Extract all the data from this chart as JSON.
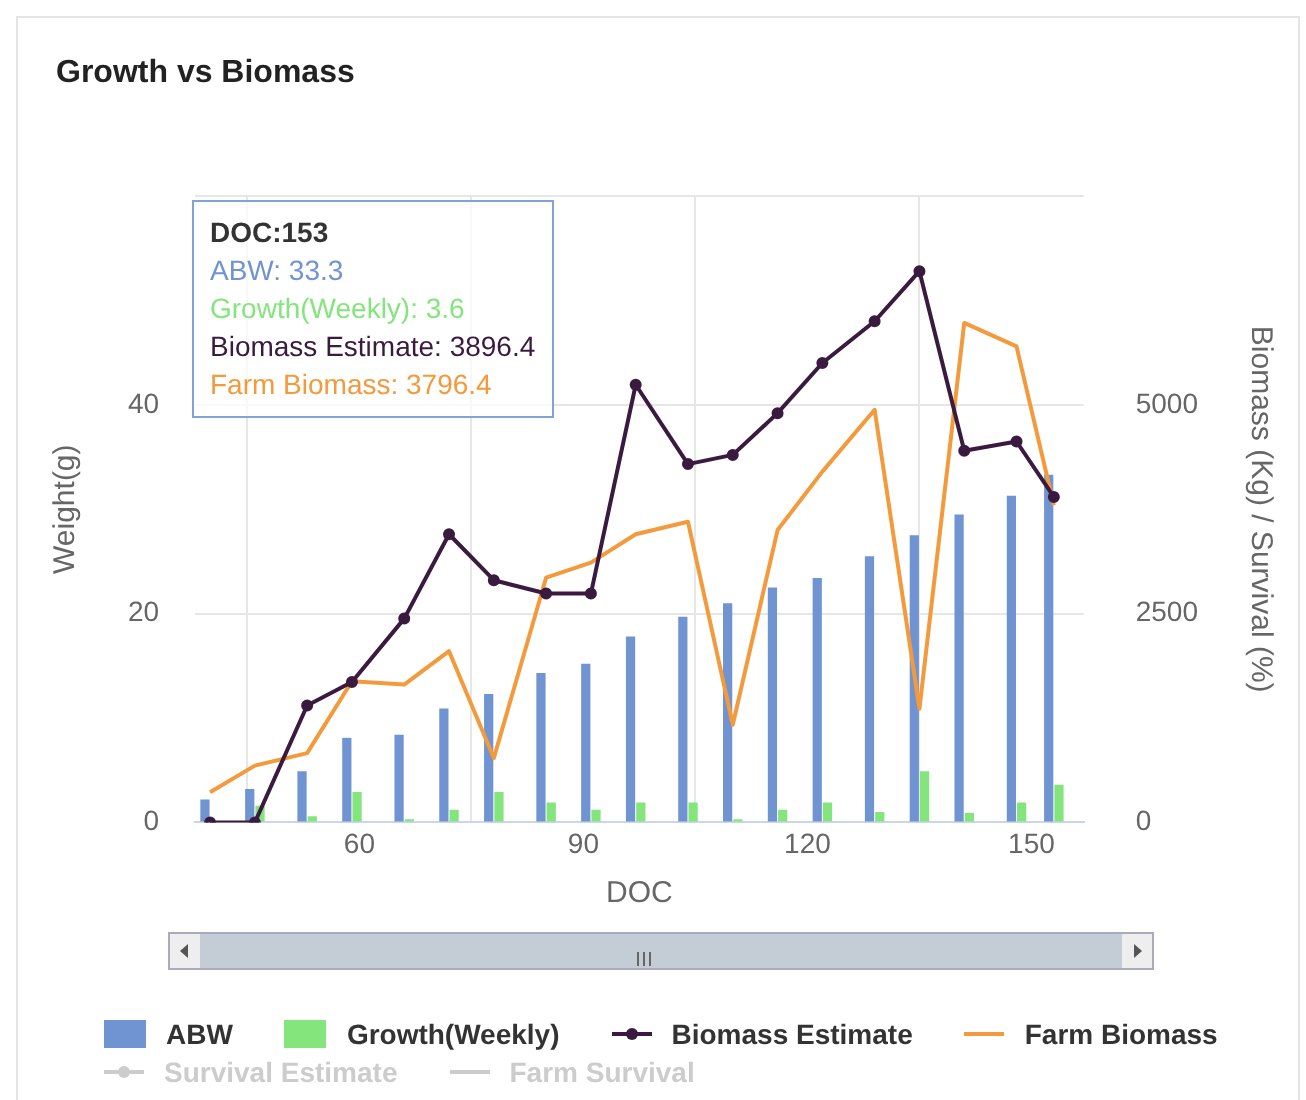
{
  "chart_data": {
    "type": "bar",
    "title": "Growth vs Biomass",
    "xlabel": "DOC",
    "ylabel": "Weight(g)",
    "y2label": "Biomass (Kg) / Survival (%)",
    "x": [
      40,
      46,
      53,
      59,
      66,
      72,
      78,
      85,
      91,
      97,
      104,
      110,
      116,
      122,
      129,
      135,
      141,
      148,
      153
    ],
    "series": [
      {
        "name": "ABW",
        "color": "#7094d2",
        "values": [
          2.2,
          3.2,
          4.9,
          8.1,
          8.4,
          10.9,
          12.3,
          14.3,
          15.2,
          17.8,
          19.7,
          21.0,
          22.5,
          23.4,
          25.5,
          27.5,
          29.5,
          31.3,
          33.3
        ]
      },
      {
        "name": "Growth(Weekly)",
        "color": "#84e57c",
        "values": [
          0,
          1.6,
          0.6,
          2.9,
          0.3,
          1.2,
          2.9,
          1.9,
          1.2,
          1.9,
          1.9,
          0.3,
          1.2,
          1.9,
          1.0,
          4.9,
          0.9,
          1.9,
          3.6
        ]
      },
      {
        "name": "Biomass Estimate",
        "type": "line",
        "axis": "y2",
        "marker": "circle",
        "color": "#3b1a3f",
        "values": [
          0,
          0,
          1400,
          1680,
          2440,
          3450,
          2900,
          2740,
          2740,
          5240,
          4290,
          4400,
          4900,
          5500,
          6000,
          6600,
          4450,
          4560,
          3896.4
        ]
      },
      {
        "name": "Farm Biomass",
        "type": "line",
        "axis": "y2",
        "marker": "none",
        "color": "#f39a3c",
        "values": [
          360,
          680,
          830,
          1690,
          1650,
          2050,
          770,
          2930,
          3110,
          3450,
          3600,
          1170,
          3500,
          4200,
          4940,
          1360,
          5980,
          5700,
          3796.4
        ]
      },
      {
        "name": "Survival Estimate",
        "type": "line",
        "axis": "y2",
        "marker": "circle",
        "color": "#cccccc",
        "values": [
          null,
          null,
          null,
          null,
          null,
          null,
          null,
          null,
          null,
          null,
          null,
          null,
          null,
          null,
          null,
          null,
          null,
          null,
          null
        ]
      },
      {
        "name": "Farm Survival",
        "type": "line",
        "axis": "y2",
        "marker": "none",
        "color": "#cccccc",
        "values": [
          null,
          null,
          null,
          null,
          null,
          null,
          null,
          null,
          null,
          null,
          null,
          null,
          null,
          null,
          null,
          null,
          null,
          null,
          null
        ]
      }
    ],
    "xlim": [
      38,
      157
    ],
    "xticks": [
      60,
      90,
      120,
      150
    ],
    "ylim": [
      0,
      60
    ],
    "yticks": [
      0,
      20,
      40,
      {
        "value": 60,
        "label": null
      }
    ],
    "y2lim": [
      0,
      7500
    ],
    "y2ticks": [
      0,
      2500,
      5000
    ],
    "grid": true,
    "legend": "bottom",
    "annotations": [
      "DOC:153",
      "ABW: 33.3",
      "Growth(Weekly): 3.6",
      "Biomass Estimate: 3896.4",
      "Farm Biomass: 3796.4"
    ]
  }
}
